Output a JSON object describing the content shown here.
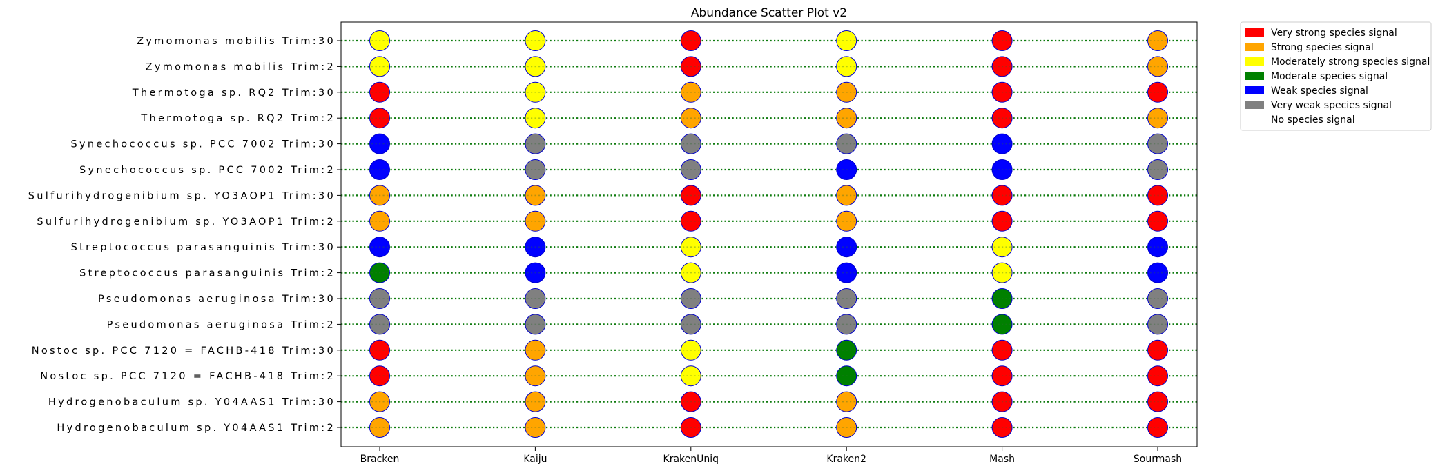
{
  "chart_data": {
    "type": "scatter",
    "title": "Abundance Scatter Plot v2",
    "xlabel": "",
    "ylabel": "",
    "grid": false,
    "legend_position": "outside-top-right",
    "x_categories": [
      "Bracken",
      "Kaiju",
      "KrakenUniq",
      "Kraken2",
      "Mash",
      "Sourmash"
    ],
    "y_categories": [
      "Zymomonas mobilis Trim:30",
      "Zymomonas mobilis Trim:2",
      "Thermotoga sp. RQ2 Trim:30",
      "Thermotoga sp. RQ2 Trim:2",
      "Synechococcus sp. PCC 7002 Trim:30",
      "Synechococcus sp. PCC 7002 Trim:2",
      "Sulfurihydrogenibium sp. YO3AOP1 Trim:30",
      "Sulfurihydrogenibium sp. YO3AOP1 Trim:2",
      "Streptococcus parasanguinis Trim:30",
      "Streptococcus parasanguinis Trim:2",
      "Pseudomonas aeruginosa Trim:30",
      "Pseudomonas aeruginosa Trim:2",
      "Nostoc sp. PCC 7120 = FACHB-418 Trim:30",
      "Nostoc sp. PCC 7120 = FACHB-418 Trim:2",
      "Hydrogenobaculum sp. Y04AAS1 Trim:30",
      "Hydrogenobaculum sp. Y04AAS1 Trim:2"
    ],
    "legend": [
      {
        "label": "Very strong species signal",
        "color": "#ff0000"
      },
      {
        "label": "Strong species signal",
        "color": "#ffa500"
      },
      {
        "label": "Moderately strong species signal",
        "color": "#ffff00"
      },
      {
        "label": "Moderate species signal",
        "color": "#008000"
      },
      {
        "label": "Weak species signal",
        "color": "#0000ff"
      },
      {
        "label": "Very weak species signal",
        "color": "#808080"
      },
      {
        "label": "No species signal",
        "color": "#ffffff"
      }
    ],
    "signal_matrix": [
      [
        "Moderately strong species signal",
        "Moderately strong species signal",
        "Very strong species signal",
        "Moderately strong species signal",
        "Very strong species signal",
        "Strong species signal"
      ],
      [
        "Moderately strong species signal",
        "Moderately strong species signal",
        "Very strong species signal",
        "Moderately strong species signal",
        "Very strong species signal",
        "Strong species signal"
      ],
      [
        "Very strong species signal",
        "Moderately strong species signal",
        "Strong species signal",
        "Strong species signal",
        "Very strong species signal",
        "Very strong species signal"
      ],
      [
        "Very strong species signal",
        "Moderately strong species signal",
        "Strong species signal",
        "Strong species signal",
        "Very strong species signal",
        "Strong species signal"
      ],
      [
        "Weak species signal",
        "Very weak species signal",
        "Very weak species signal",
        "Very weak species signal",
        "Weak species signal",
        "Very weak species signal"
      ],
      [
        "Weak species signal",
        "Very weak species signal",
        "Very weak species signal",
        "Weak species signal",
        "Weak species signal",
        "Very weak species signal"
      ],
      [
        "Strong species signal",
        "Strong species signal",
        "Very strong species signal",
        "Strong species signal",
        "Very strong species signal",
        "Very strong species signal"
      ],
      [
        "Strong species signal",
        "Strong species signal",
        "Very strong species signal",
        "Strong species signal",
        "Very strong species signal",
        "Very strong species signal"
      ],
      [
        "Weak species signal",
        "Weak species signal",
        "Moderately strong species signal",
        "Weak species signal",
        "Moderately strong species signal",
        "Weak species signal"
      ],
      [
        "Moderate species signal",
        "Weak species signal",
        "Moderately strong species signal",
        "Weak species signal",
        "Moderately strong species signal",
        "Weak species signal"
      ],
      [
        "Very weak species signal",
        "Very weak species signal",
        "Very weak species signal",
        "Very weak species signal",
        "Moderate species signal",
        "Very weak species signal"
      ],
      [
        "Very weak species signal",
        "Very weak species signal",
        "Very weak species signal",
        "Very weak species signal",
        "Moderate species signal",
        "Very weak species signal"
      ],
      [
        "Very strong species signal",
        "Strong species signal",
        "Moderately strong species signal",
        "Moderate species signal",
        "Very strong species signal",
        "Very strong species signal"
      ],
      [
        "Very strong species signal",
        "Strong species signal",
        "Moderately strong species signal",
        "Moderate species signal",
        "Very strong species signal",
        "Very strong species signal"
      ],
      [
        "Strong species signal",
        "Strong species signal",
        "Very strong species signal",
        "Strong species signal",
        "Very strong species signal",
        "Very strong species signal"
      ],
      [
        "Strong species signal",
        "Strong species signal",
        "Very strong species signal",
        "Strong species signal",
        "Very strong species signal",
        "Very strong species signal"
      ]
    ],
    "marker_edge_color": "#0000cc",
    "row_line_color": "#008000",
    "row_line_style": "dotted"
  }
}
